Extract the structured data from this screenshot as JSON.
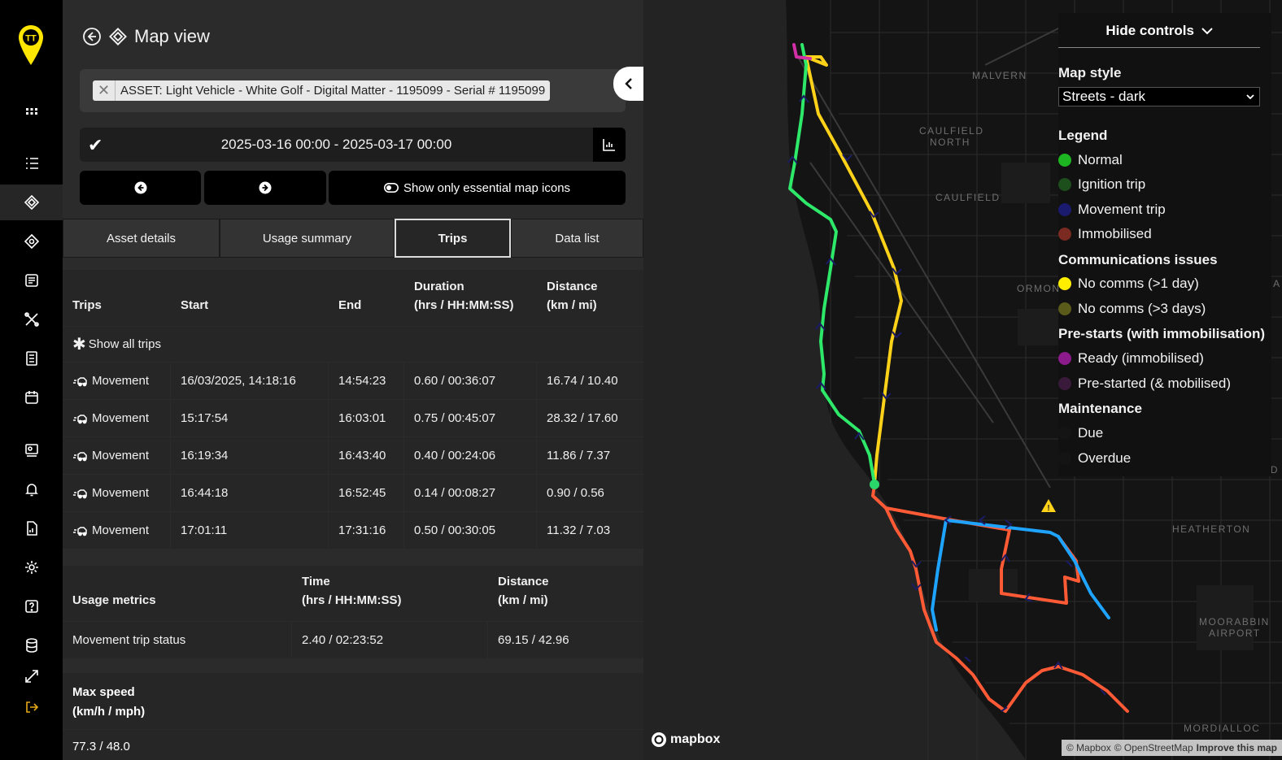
{
  "header": {
    "title": "Map view"
  },
  "asset": {
    "chip_label": "ASSET: Light Vehicle - White Golf - Digital Matter - 1195099 - Serial # 1195099"
  },
  "date_range": {
    "text": "2025-03-16 00:00 - 2025-03-17 00:00"
  },
  "essential_icons_label": "Show only essential map icons",
  "tabs": [
    {
      "label": "Asset details"
    },
    {
      "label": "Usage summary"
    },
    {
      "label": "Trips"
    },
    {
      "label": "Data list"
    }
  ],
  "trips_table": {
    "headers": {
      "trips": "Trips",
      "start": "Start",
      "end": "End",
      "duration_1": "Duration",
      "duration_2": "(hrs / HH:MM:SS)",
      "distance_1": "Distance",
      "distance_2": "(km / mi)"
    },
    "show_all": "Show all trips",
    "rows": [
      {
        "type": "Movement",
        "start": "16/03/2025, 14:18:16",
        "end": "14:54:23",
        "duration": "0.60 / 00:36:07",
        "distance": "16.74 / 10.40"
      },
      {
        "type": "Movement",
        "start": "15:17:54",
        "end": "16:03:01",
        "duration": "0.75 / 00:45:07",
        "distance": "28.32 / 17.60"
      },
      {
        "type": "Movement",
        "start": "16:19:34",
        "end": "16:43:40",
        "duration": "0.40 / 00:24:06",
        "distance": "11.86 / 7.37"
      },
      {
        "type": "Movement",
        "start": "16:44:18",
        "end": "16:52:45",
        "duration": "0.14 / 00:08:27",
        "distance": "0.90 / 0.56"
      },
      {
        "type": "Movement",
        "start": "17:01:11",
        "end": "17:31:16",
        "duration": "0.50 / 00:30:05",
        "distance": "11.32 / 7.03"
      }
    ]
  },
  "usage_table": {
    "headers": {
      "metric": "Usage metrics",
      "time_1": "Time",
      "time_2": "(hrs / HH:MM:SS)",
      "distance_1": "Distance",
      "distance_2": "(km / mi)"
    },
    "row": {
      "metric": "Movement trip status",
      "time": "2.40 / 02:23:52",
      "distance": "69.15 / 42.96"
    }
  },
  "max_speed": {
    "label_1": "Max speed",
    "label_2": "(km/h / mph)",
    "value": "77.3 / 48.0"
  },
  "map": {
    "places": [
      "MALVERN",
      "CAULFIELD",
      "NORTH",
      "CAULFIELD",
      "ORMOND",
      "HEATHERTON",
      "MOORABBIN",
      "AIRPORT",
      "MORDIALLOC",
      "DA",
      "ID"
    ],
    "mapbox_label": "mapbox",
    "attribution": {
      "mapbox": "© Mapbox",
      "osm": "© OpenStreetMap",
      "improve": "Improve this map"
    }
  },
  "controls": {
    "hide_label": "Hide controls",
    "map_style_heading": "Map style",
    "map_style_value": "Streets - dark",
    "legend_heading": "Legend",
    "legend": [
      {
        "label": "Normal",
        "color": "#1db522"
      },
      {
        "label": "Ignition trip",
        "color": "#1d4f1d"
      },
      {
        "label": "Movement trip",
        "color": "#1a1a6e"
      },
      {
        "label": "Immobilised",
        "color": "#7a2a20"
      }
    ],
    "comms_heading": "Communications issues",
    "comms": [
      {
        "label": "No comms (>1 day)",
        "color": "#ffee00"
      },
      {
        "label": "No comms (>3 days)",
        "color": "#5a5a1a"
      }
    ],
    "prestarts_heading": "Pre-starts (with immobilisation)",
    "prestarts": [
      {
        "label": "Ready (immobilised)",
        "color": "#8b1a8b"
      },
      {
        "label": "Pre-started (& mobilised)",
        "color": "#3a1a3a"
      }
    ],
    "maintenance_heading": "Maintenance",
    "maintenance": [
      {
        "label": "Due",
        "color": "#141414"
      },
      {
        "label": "Overdue",
        "color": "#141414"
      }
    ]
  }
}
